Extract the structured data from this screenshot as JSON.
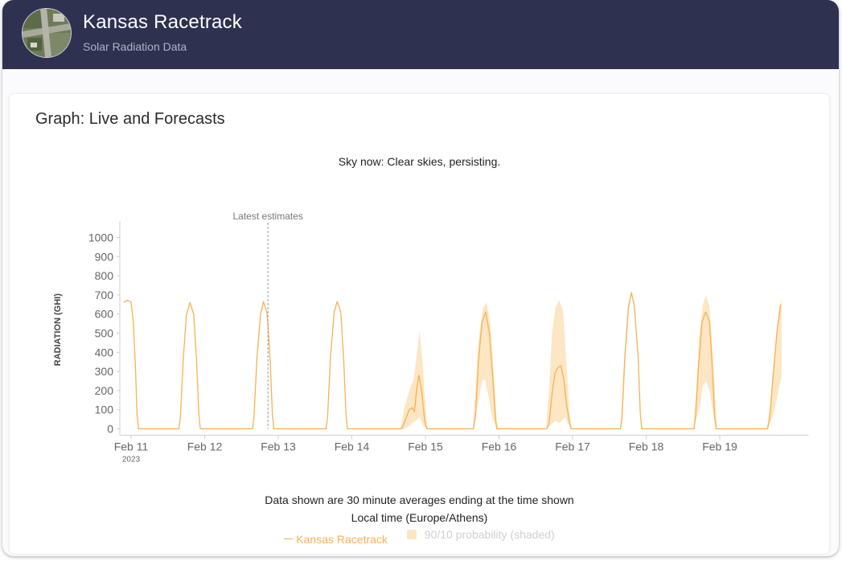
{
  "header": {
    "title": "Kansas Racetrack",
    "subtitle": "Solar Radiation Data"
  },
  "card": {
    "title": "Graph: Live and Forecasts",
    "sky_now": "Sky now: Clear skies, persisting."
  },
  "footnotes": {
    "line1": "Data shown are 30 minute averages ending at the time shown",
    "line2": "Local time (Europe/Athens)"
  },
  "legend": {
    "series_label": "Kansas Racetrack",
    "band_label": "90/10 probability (shaded)"
  },
  "colors": {
    "header_bg": "#2f3150",
    "series": "#f6b154",
    "band": "#fde6c4"
  },
  "chart_data": {
    "type": "line",
    "title": "Sky now: Clear skies, persisting.",
    "xlabel": "Local time (Europe/Athens)",
    "ylabel": "RADIATION (GHI)",
    "ylim": [
      0,
      1000
    ],
    "yticks": [
      0,
      100,
      200,
      300,
      400,
      500,
      600,
      700,
      800,
      900,
      1000
    ],
    "x_range_days": [
      0,
      9.1
    ],
    "x_ticks": [
      {
        "day": 0,
        "label": "Feb 11",
        "sublabel": "2023"
      },
      {
        "day": 1,
        "label": "Feb 12"
      },
      {
        "day": 2,
        "label": "Feb 13"
      },
      {
        "day": 3,
        "label": "Feb 14"
      },
      {
        "day": 4,
        "label": "Feb 15"
      },
      {
        "day": 5,
        "label": "Feb 16"
      },
      {
        "day": 6,
        "label": "Feb 17"
      },
      {
        "day": 7,
        "label": "Feb 18"
      },
      {
        "day": 8,
        "label": "Feb 19"
      }
    ],
    "annotation": {
      "label": "Latest estimates",
      "day": 1.86
    },
    "series": [
      {
        "name": "Kansas Racetrack",
        "points": [
          [
            -0.1,
            660
          ],
          [
            -0.05,
            672
          ],
          [
            0.0,
            662
          ],
          [
            0.03,
            560
          ],
          [
            0.06,
            320
          ],
          [
            0.08,
            80
          ],
          [
            0.1,
            0
          ],
          [
            0.65,
            0
          ],
          [
            0.67,
            60
          ],
          [
            0.71,
            370
          ],
          [
            0.75,
            590
          ],
          [
            0.8,
            660
          ],
          [
            0.85,
            600
          ],
          [
            0.89,
            360
          ],
          [
            0.92,
            80
          ],
          [
            0.94,
            0
          ],
          [
            1.65,
            0
          ],
          [
            1.67,
            60
          ],
          [
            1.71,
            370
          ],
          [
            1.76,
            600
          ],
          [
            1.8,
            665
          ],
          [
            1.85,
            600
          ],
          [
            1.89,
            360
          ],
          [
            1.92,
            80
          ],
          [
            1.94,
            0
          ],
          [
            2.65,
            0
          ],
          [
            2.67,
            60
          ],
          [
            2.71,
            380
          ],
          [
            2.76,
            610
          ],
          [
            2.8,
            665
          ],
          [
            2.85,
            610
          ],
          [
            2.89,
            360
          ],
          [
            2.92,
            80
          ],
          [
            2.94,
            0
          ],
          [
            3.68,
            0
          ],
          [
            3.72,
            40
          ],
          [
            3.78,
            100
          ],
          [
            3.82,
            110
          ],
          [
            3.85,
            90
          ],
          [
            3.88,
            200
          ],
          [
            3.91,
            280
          ],
          [
            3.95,
            200
          ],
          [
            3.99,
            40
          ],
          [
            4.02,
            0
          ],
          [
            4.65,
            0
          ],
          [
            4.68,
            60
          ],
          [
            4.72,
            350
          ],
          [
            4.77,
            560
          ],
          [
            4.82,
            610
          ],
          [
            4.87,
            500
          ],
          [
            4.92,
            240
          ],
          [
            4.95,
            60
          ],
          [
            4.97,
            0
          ],
          [
            5.65,
            0
          ],
          [
            5.68,
            30
          ],
          [
            5.72,
            180
          ],
          [
            5.76,
            290
          ],
          [
            5.8,
            320
          ],
          [
            5.84,
            330
          ],
          [
            5.88,
            260
          ],
          [
            5.92,
            120
          ],
          [
            5.96,
            30
          ],
          [
            5.98,
            0
          ],
          [
            6.65,
            0
          ],
          [
            6.67,
            60
          ],
          [
            6.71,
            380
          ],
          [
            6.76,
            640
          ],
          [
            6.8,
            712
          ],
          [
            6.84,
            640
          ],
          [
            6.89,
            380
          ],
          [
            6.92,
            80
          ],
          [
            6.94,
            0
          ],
          [
            7.65,
            0
          ],
          [
            7.67,
            60
          ],
          [
            7.71,
            320
          ],
          [
            7.76,
            560
          ],
          [
            7.81,
            610
          ],
          [
            7.86,
            560
          ],
          [
            7.9,
            300
          ],
          [
            7.93,
            60
          ],
          [
            7.95,
            0
          ],
          [
            8.65,
            0
          ],
          [
            8.68,
            60
          ],
          [
            8.73,
            300
          ],
          [
            8.78,
            520
          ],
          [
            8.83,
            650
          ]
        ]
      }
    ],
    "band": {
      "name": "90/10 probability (shaded)",
      "upper": [
        [
          3.66,
          0
        ],
        [
          3.72,
          120
        ],
        [
          3.78,
          200
        ],
        [
          3.84,
          260
        ],
        [
          3.88,
          380
        ],
        [
          3.92,
          510
        ],
        [
          3.96,
          360
        ],
        [
          4.0,
          120
        ],
        [
          4.03,
          0
        ],
        [
          4.64,
          0
        ],
        [
          4.68,
          200
        ],
        [
          4.72,
          460
        ],
        [
          4.78,
          630
        ],
        [
          4.83,
          660
        ],
        [
          4.88,
          560
        ],
        [
          4.93,
          280
        ],
        [
          4.97,
          40
        ],
        [
          4.99,
          0
        ],
        [
          5.64,
          0
        ],
        [
          5.68,
          200
        ],
        [
          5.72,
          500
        ],
        [
          5.77,
          640
        ],
        [
          5.82,
          670
        ],
        [
          5.87,
          620
        ],
        [
          5.91,
          380
        ],
        [
          5.96,
          80
        ],
        [
          5.99,
          0
        ],
        [
          6.66,
          0
        ],
        [
          6.68,
          80
        ],
        [
          6.72,
          390
        ],
        [
          6.77,
          650
        ],
        [
          6.8,
          715
        ],
        [
          6.84,
          650
        ],
        [
          6.89,
          390
        ],
        [
          6.92,
          90
        ],
        [
          6.94,
          0
        ],
        [
          7.64,
          0
        ],
        [
          7.68,
          200
        ],
        [
          7.72,
          480
        ],
        [
          7.77,
          650
        ],
        [
          7.81,
          700
        ],
        [
          7.86,
          640
        ],
        [
          7.91,
          380
        ],
        [
          7.95,
          80
        ],
        [
          7.97,
          0
        ],
        [
          8.64,
          0
        ],
        [
          8.68,
          120
        ],
        [
          8.74,
          380
        ],
        [
          8.8,
          620
        ],
        [
          8.84,
          680
        ]
      ],
      "lower": [
        [
          3.66,
          0
        ],
        [
          3.72,
          0
        ],
        [
          3.8,
          20
        ],
        [
          3.86,
          40
        ],
        [
          3.92,
          60
        ],
        [
          3.98,
          10
        ],
        [
          4.03,
          0
        ],
        [
          4.64,
          0
        ],
        [
          4.72,
          140
        ],
        [
          4.77,
          250
        ],
        [
          4.81,
          260
        ],
        [
          4.86,
          160
        ],
        [
          4.92,
          40
        ],
        [
          4.99,
          0
        ],
        [
          5.64,
          0
        ],
        [
          5.7,
          20
        ],
        [
          5.76,
          40
        ],
        [
          5.82,
          30
        ],
        [
          5.9,
          60
        ],
        [
          5.95,
          20
        ],
        [
          5.99,
          0
        ],
        [
          6.66,
          0
        ],
        [
          6.68,
          40
        ],
        [
          6.72,
          360
        ],
        [
          6.77,
          630
        ],
        [
          6.8,
          705
        ],
        [
          6.84,
          630
        ],
        [
          6.89,
          360
        ],
        [
          6.92,
          60
        ],
        [
          6.94,
          0
        ],
        [
          7.64,
          0
        ],
        [
          7.72,
          100
        ],
        [
          7.77,
          220
        ],
        [
          7.81,
          250
        ],
        [
          7.86,
          200
        ],
        [
          7.93,
          40
        ],
        [
          7.97,
          0
        ],
        [
          8.64,
          0
        ],
        [
          8.72,
          60
        ],
        [
          8.78,
          160
        ],
        [
          8.84,
          280
        ]
      ]
    }
  }
}
